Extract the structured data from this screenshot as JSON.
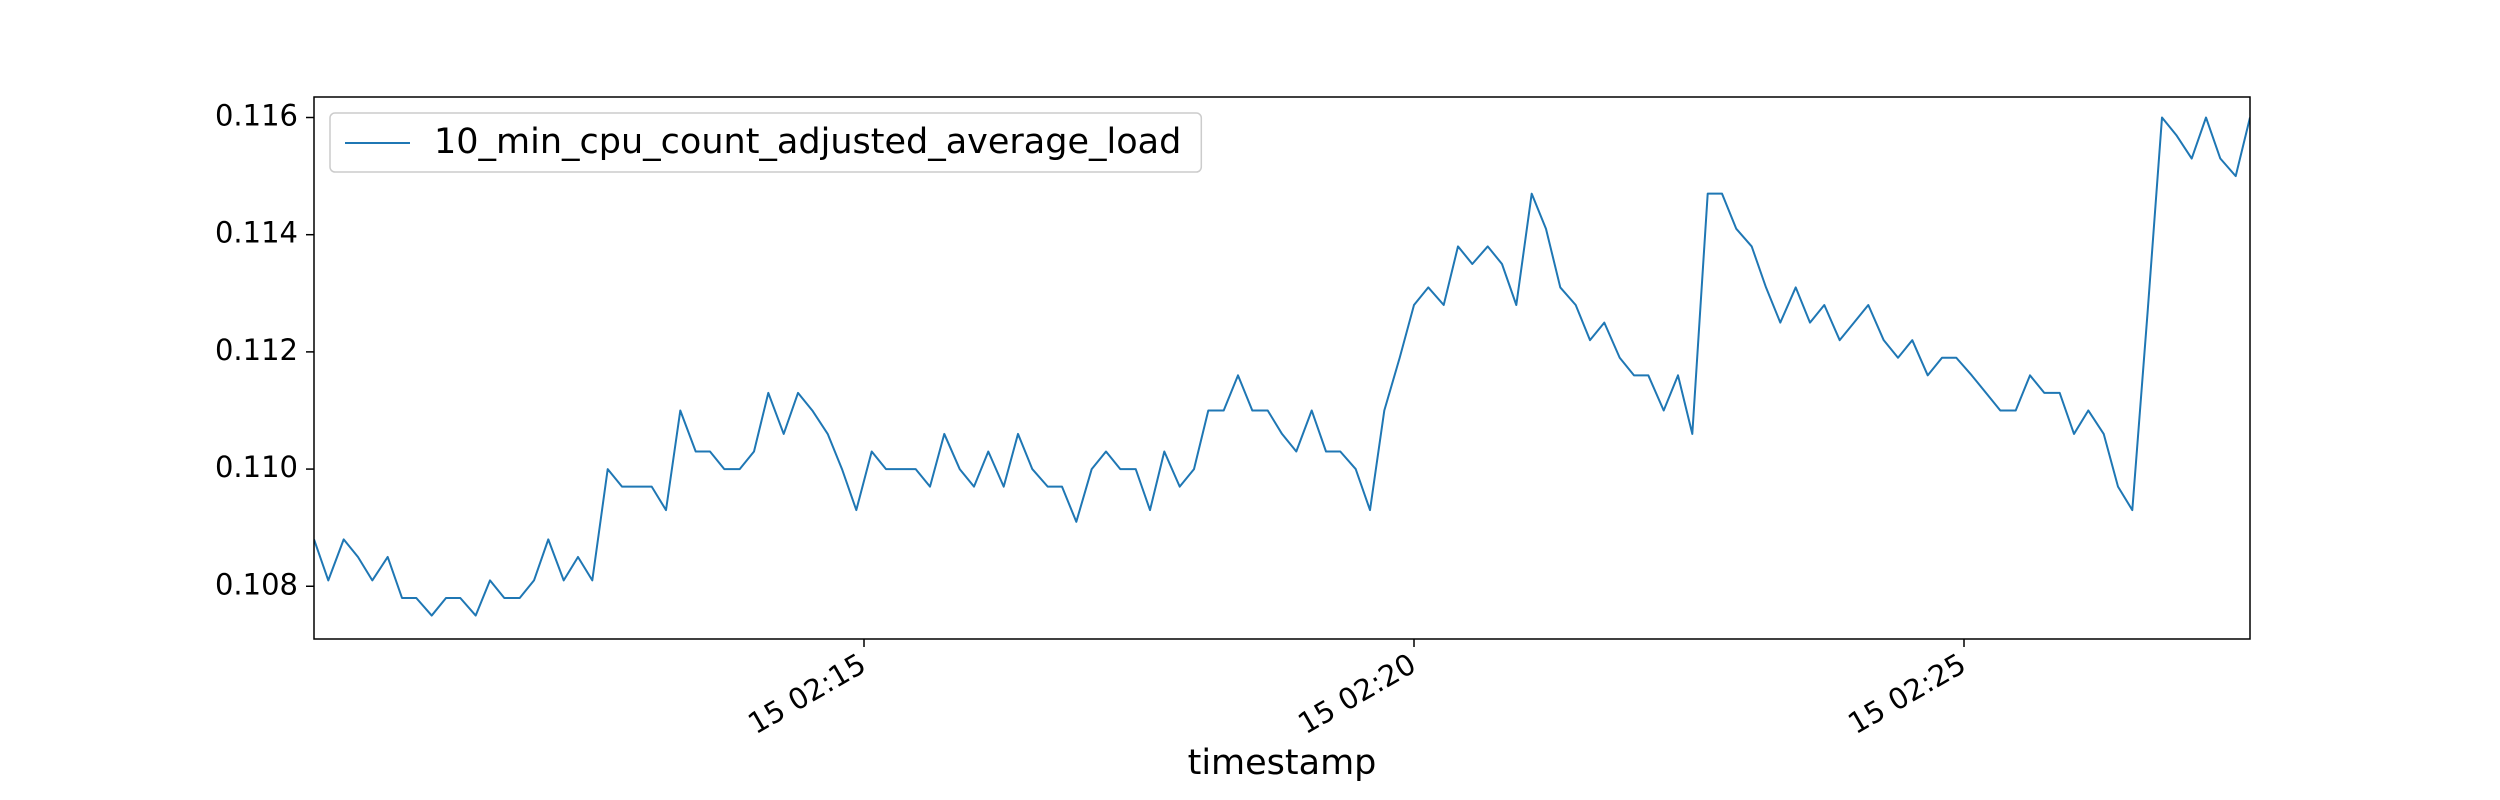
{
  "chart_data": {
    "type": "line",
    "xlabel": "timestamp",
    "legend": "upper left",
    "x": [
      10.0,
      10.13,
      10.27,
      10.4,
      10.53,
      10.67,
      10.8,
      10.93,
      11.07,
      11.2,
      11.33,
      11.47,
      11.6,
      11.73,
      11.87,
      12.0,
      12.13,
      12.27,
      12.4,
      12.53,
      12.67,
      12.8,
      12.93,
      13.07,
      13.2,
      13.33,
      13.47,
      13.6,
      13.73,
      13.87,
      14.0,
      14.13,
      14.27,
      14.4,
      14.53,
      14.67,
      14.8,
      14.93,
      15.07,
      15.2,
      15.33,
      15.47,
      15.6,
      15.73,
      15.87,
      16.0,
      16.13,
      16.27,
      16.4,
      16.53,
      16.67,
      16.8,
      16.93,
      17.07,
      17.2,
      17.33,
      17.47,
      17.6,
      17.73,
      17.87,
      18.0,
      18.13,
      18.27,
      18.4,
      18.53,
      18.67,
      18.8,
      18.93,
      19.07,
      19.2,
      19.33,
      19.47,
      19.6,
      19.73,
      19.87,
      20.0,
      20.13,
      20.27,
      20.4,
      20.53,
      20.67,
      20.8,
      20.93,
      21.07,
      21.2,
      21.33,
      21.47,
      21.6,
      21.73,
      21.87,
      22.0,
      22.13,
      22.27,
      22.4,
      22.53,
      22.67,
      22.8,
      22.93,
      23.07,
      23.2,
      23.33,
      23.47,
      23.6,
      23.73,
      23.87,
      24.0,
      24.13,
      24.27,
      24.4,
      24.53,
      24.67,
      24.8,
      24.93,
      25.07,
      25.2,
      25.33,
      25.47,
      25.6,
      25.73,
      25.87,
      26.0,
      26.13,
      26.27,
      26.4,
      26.53,
      26.67,
      26.8,
      26.93,
      27.07,
      27.2,
      27.33,
      27.47,
      27.6
    ],
    "series": [
      {
        "name": "10_min_cpu_count_adjusted_average_load",
        "color": "#1f77b4",
        "values": [
          0.1088,
          0.1081,
          0.1088,
          0.1085,
          0.1081,
          0.1085,
          0.1078,
          0.1078,
          0.1075,
          0.1078,
          0.1078,
          0.1075,
          0.1081,
          0.1078,
          0.1078,
          0.1081,
          0.1088,
          0.1081,
          0.1085,
          0.1081,
          0.11,
          0.1097,
          0.1097,
          0.1097,
          0.1093,
          0.111,
          0.1103,
          0.1103,
          0.11,
          0.11,
          0.1103,
          0.1113,
          0.1106,
          0.1113,
          0.111,
          0.1106,
          0.11,
          0.1093,
          0.1103,
          0.11,
          0.11,
          0.11,
          0.1097,
          0.1106,
          0.11,
          0.1097,
          0.1103,
          0.1097,
          0.1106,
          0.11,
          0.1097,
          0.1097,
          0.1091,
          0.11,
          0.1103,
          0.11,
          0.11,
          0.1093,
          0.1103,
          0.1097,
          0.11,
          0.111,
          0.111,
          0.1116,
          0.111,
          0.111,
          0.1106,
          0.1103,
          0.111,
          0.1103,
          0.1103,
          0.11,
          0.1093,
          0.111,
          0.1119,
          0.1128,
          0.1131,
          0.1128,
          0.1138,
          0.1135,
          0.1138,
          0.1135,
          0.1128,
          0.1147,
          0.1141,
          0.1131,
          0.1128,
          0.1122,
          0.1125,
          0.1119,
          0.1116,
          0.1116,
          0.111,
          0.1116,
          0.1106,
          0.1147,
          0.1147,
          0.1141,
          0.1138,
          0.1131,
          0.1125,
          0.1131,
          0.1125,
          0.1128,
          0.1122,
          0.1125,
          0.1128,
          0.1122,
          0.1119,
          0.1122,
          0.1116,
          0.1119,
          0.1119,
          0.1116,
          0.1113,
          0.111,
          0.111,
          0.1116,
          0.1113,
          0.1113,
          0.1106,
          0.111,
          0.1106,
          0.1097,
          0.1093,
          0.1127,
          0.116,
          0.1157,
          0.1153,
          0.116,
          0.1153,
          0.115,
          0.116
        ]
      }
    ],
    "xlim": [
      10.0,
      27.6
    ],
    "ylim": [
      0.1071,
      0.11635
    ],
    "xticks": [
      {
        "value": 15,
        "label": "15 02:15"
      },
      {
        "value": 20,
        "label": "15 02:20"
      },
      {
        "value": 25,
        "label": "15 02:25"
      }
    ],
    "yticks": [
      0.108,
      {
        "value": 0.11,
        "label": "0.110"
      },
      0.112,
      0.114,
      0.116
    ]
  }
}
